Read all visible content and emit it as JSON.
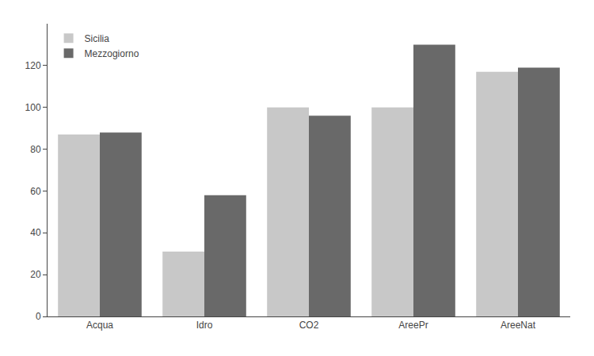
{
  "chart_data": {
    "type": "bar",
    "categories": [
      "Acqua",
      "Idro",
      "CO2",
      "AreePr",
      "AreeNat"
    ],
    "series": [
      {
        "name": "Sicilia",
        "color": "#c8c8c8",
        "values": [
          87,
          31,
          100,
          100,
          117
        ]
      },
      {
        "name": "Mezzogiorno",
        "color": "#696969",
        "values": [
          88,
          58,
          96,
          130,
          119
        ]
      }
    ],
    "ylim": [
      0,
      140
    ],
    "yticks": [
      0,
      20,
      40,
      60,
      80,
      100,
      120
    ],
    "grid": false,
    "legend": "upper left"
  }
}
